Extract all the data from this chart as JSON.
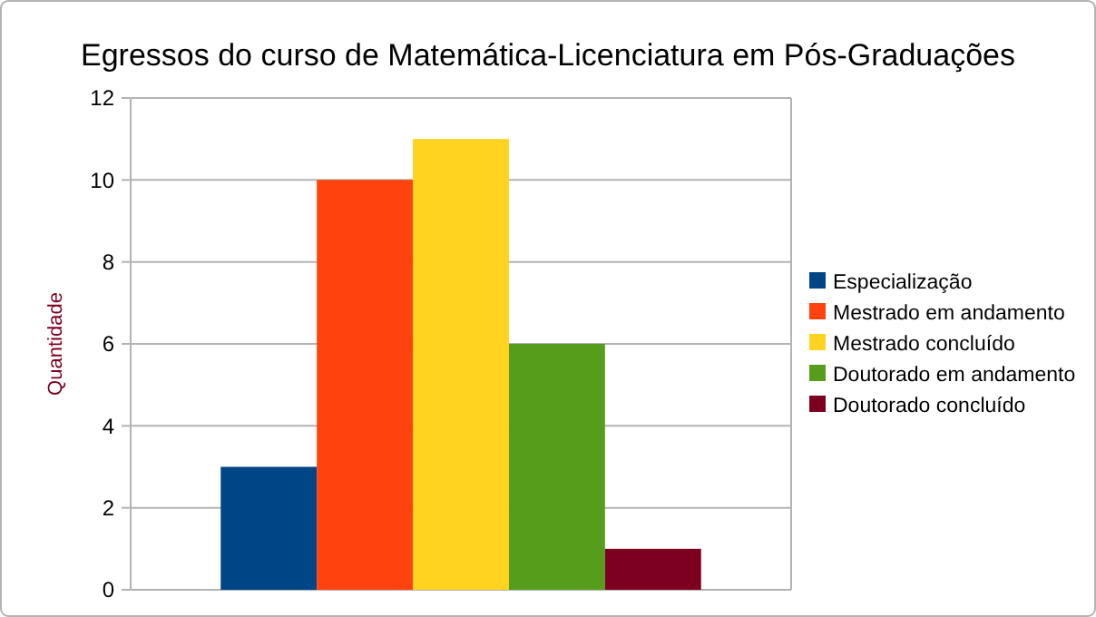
{
  "chart_data": {
    "type": "bar",
    "title": "Egressos do curso de Matemática-Licenciatura em Pós-Graduações",
    "ylabel": "Quantidade",
    "categories": [
      null
    ],
    "series": [
      {
        "name": "Especialização",
        "color": "#004586",
        "values": [
          3
        ]
      },
      {
        "name": "Mestrado em andamento",
        "color": "#ff420e",
        "values": [
          10
        ]
      },
      {
        "name": "Mestrado concluído",
        "color": "#ffd320",
        "values": [
          11
        ]
      },
      {
        "name": "Doutorado em andamento",
        "color": "#579d1c",
        "values": [
          6
        ]
      },
      {
        "name": "Doutorado concluído",
        "color": "#7e0021",
        "values": [
          1
        ]
      }
    ],
    "ylim": [
      0,
      12
    ],
    "yticks": [
      0,
      2,
      4,
      6,
      8,
      10,
      12
    ],
    "grid": "y",
    "legend": "right"
  }
}
